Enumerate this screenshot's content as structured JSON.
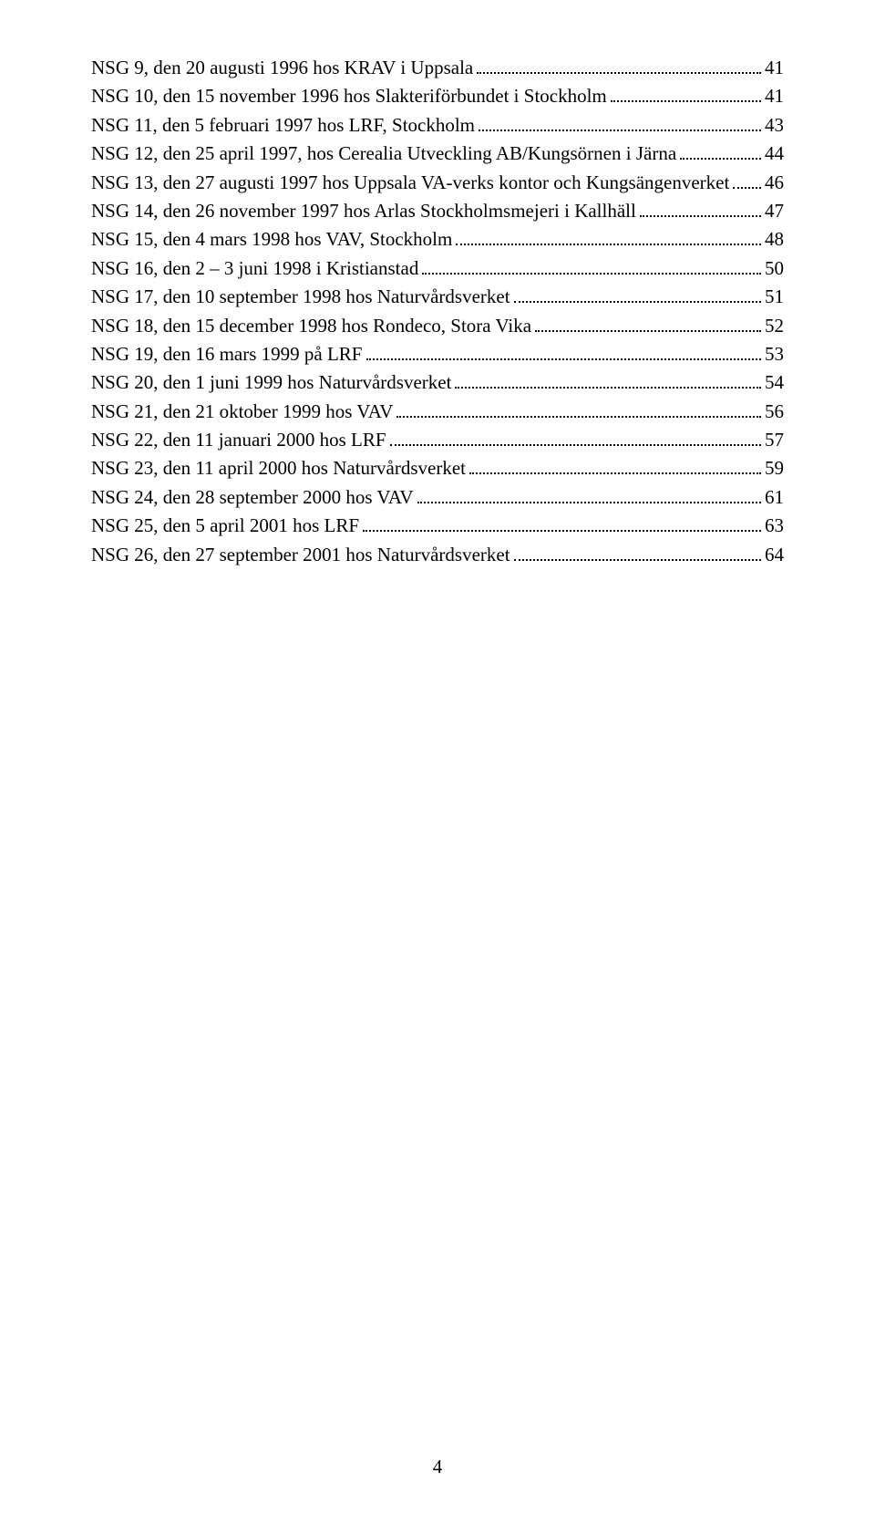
{
  "toc": [
    {
      "label": "NSG 9, den 20 augusti 1996 hos KRAV i Uppsala",
      "page": "41"
    },
    {
      "label": "NSG 10, den 15 november 1996 hos Slakteriförbundet i Stockholm",
      "page": "41"
    },
    {
      "label": "NSG 11, den 5 februari 1997 hos LRF, Stockholm",
      "page": "43"
    },
    {
      "label": "NSG 12, den 25 april 1997, hos Cerealia Utveckling AB/Kungsörnen i Järna",
      "page": "44"
    },
    {
      "label": "NSG 13, den 27 augusti 1997 hos Uppsala VA-verks kontor och Kungsängenverket",
      "page": "46"
    },
    {
      "label": "NSG 14, den 26 november 1997 hos Arlas Stockholmsmejeri i Kallhäll",
      "page": "47"
    },
    {
      "label": "NSG 15, den 4 mars 1998 hos VAV, Stockholm",
      "page": "48"
    },
    {
      "label": "NSG 16, den 2 – 3 juni 1998 i Kristianstad",
      "page": "50"
    },
    {
      "label": "NSG 17, den 10 september 1998 hos Naturvårdsverket",
      "page": "51"
    },
    {
      "label": "NSG 18, den 15 december 1998 hos Rondeco, Stora Vika",
      "page": "52"
    },
    {
      "label": "NSG 19, den 16 mars 1999 på LRF",
      "page": "53"
    },
    {
      "label": "NSG 20, den 1 juni 1999 hos Naturvårdsverket",
      "page": "54"
    },
    {
      "label": "NSG 21, den 21 oktober 1999 hos VAV",
      "page": "56"
    },
    {
      "label": "NSG 22, den 11 januari 2000 hos LRF",
      "page": "57"
    },
    {
      "label": "NSG 23, den 11 april 2000 hos Naturvårdsverket",
      "page": "59"
    },
    {
      "label": "NSG 24, den 28 september 2000 hos VAV",
      "page": "61"
    },
    {
      "label": "NSG 25, den 5 april 2001 hos LRF",
      "page": "63"
    },
    {
      "label": "NSG 26, den 27 september 2001 hos Naturvårdsverket",
      "page": "64"
    }
  ],
  "pageNumber": "4"
}
